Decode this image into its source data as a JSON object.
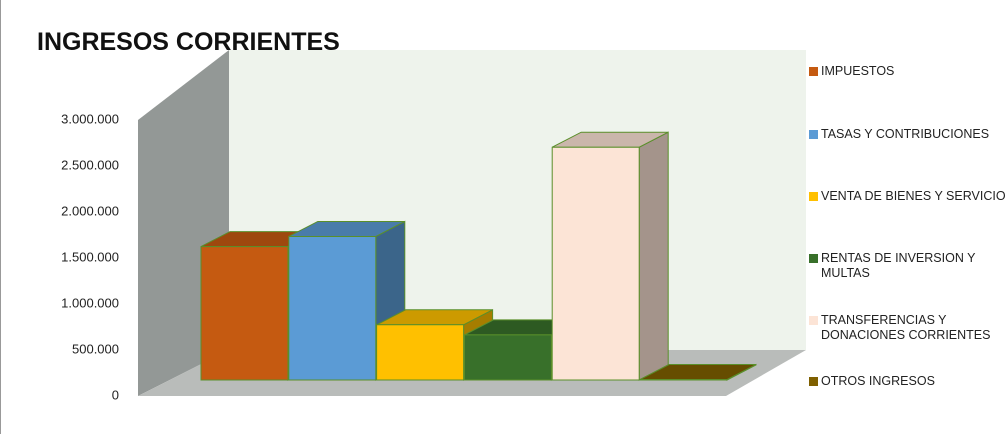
{
  "chart_data": {
    "type": "bar3d",
    "title": "INGRESOS CORRIENTES",
    "categories": [
      "IMPUESTOS",
      "TASAS Y CONTRIBUCIONES",
      "VENTA DE BIENES Y SERVICIOS",
      "RENTAS DE INVERSION Y MULTAS",
      "TRANSFERENCIAS Y DONACIONES CORRIENTES",
      "OTROS INGRESOS"
    ],
    "values": [
      1450000,
      1560000,
      600000,
      490000,
      2530000,
      5000
    ],
    "colors": [
      "#c55a11",
      "#5b9bd5",
      "#ffc000",
      "#38702a",
      "#fce4d6",
      "#7f6000"
    ],
    "ylim": [
      0,
      3000000
    ],
    "yticks": [
      0,
      {
        "value": 500000,
        "label": "500.000"
      },
      {
        "value": 1000000,
        "label": "1.000.000"
      },
      {
        "value": 1500000,
        "label": "1.500.000"
      },
      {
        "value": 2000000,
        "label": "2.000.000"
      },
      {
        "value": 2500000,
        "label": "2.500.000"
      },
      {
        "value": 3000000,
        "label": "3.000.000"
      }
    ]
  }
}
